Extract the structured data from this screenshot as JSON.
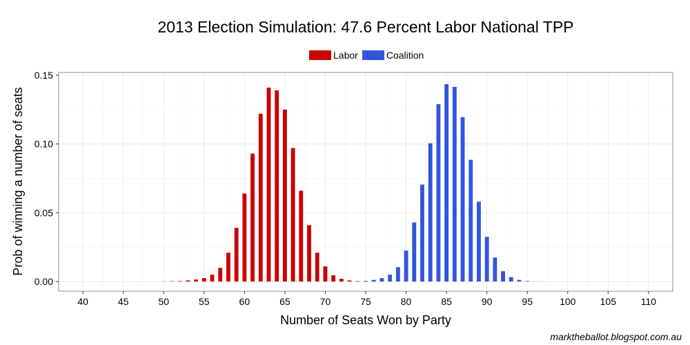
{
  "chart_data": {
    "type": "bar",
    "title": "2013 Election Simulation: 47.6 Percent Labor National TPP",
    "xlabel": "Number of Seats Won by Party",
    "ylabel": "Prob of winning a number of seats",
    "xlim": [
      37,
      113
    ],
    "ylim": [
      -0.007,
      0.152
    ],
    "xticks": [
      40,
      45,
      50,
      55,
      60,
      65,
      70,
      75,
      80,
      85,
      90,
      95,
      100,
      105,
      110
    ],
    "yticks": [
      0.0,
      0.05,
      0.1,
      0.15
    ],
    "ytick_labels": [
      "0.00",
      "0.05",
      "0.10",
      "0.15"
    ],
    "legend_position": "top",
    "series": [
      {
        "name": "Labor",
        "color": "#cc0000",
        "x": [
          50,
          51,
          52,
          53,
          54,
          55,
          56,
          57,
          58,
          59,
          60,
          61,
          62,
          63,
          64,
          65,
          66,
          67,
          68,
          69,
          70,
          71,
          72,
          73,
          74,
          75
        ],
        "values": [
          0.0001,
          0.0002,
          0.0004,
          0.0008,
          0.0015,
          0.0025,
          0.005,
          0.01,
          0.021,
          0.039,
          0.064,
          0.093,
          0.122,
          0.141,
          0.139,
          0.125,
          0.097,
          0.066,
          0.041,
          0.021,
          0.011,
          0.0045,
          0.002,
          0.0008,
          0.0003,
          0.0001
        ]
      },
      {
        "name": "Coalition",
        "color": "#3355dd",
        "x": [
          74,
          75,
          76,
          77,
          78,
          79,
          80,
          81,
          82,
          83,
          84,
          85,
          86,
          87,
          88,
          89,
          90,
          91,
          92,
          93,
          94,
          95,
          96
        ],
        "values": [
          0.0002,
          0.0005,
          0.0012,
          0.0025,
          0.005,
          0.0105,
          0.0225,
          0.043,
          0.0705,
          0.1005,
          0.129,
          0.1435,
          0.1415,
          0.1195,
          0.0885,
          0.058,
          0.0325,
          0.0175,
          0.0075,
          0.0032,
          0.0012,
          0.0004,
          0.0001
        ]
      }
    ]
  },
  "credit": "marktheballot.blogspot.com.au"
}
